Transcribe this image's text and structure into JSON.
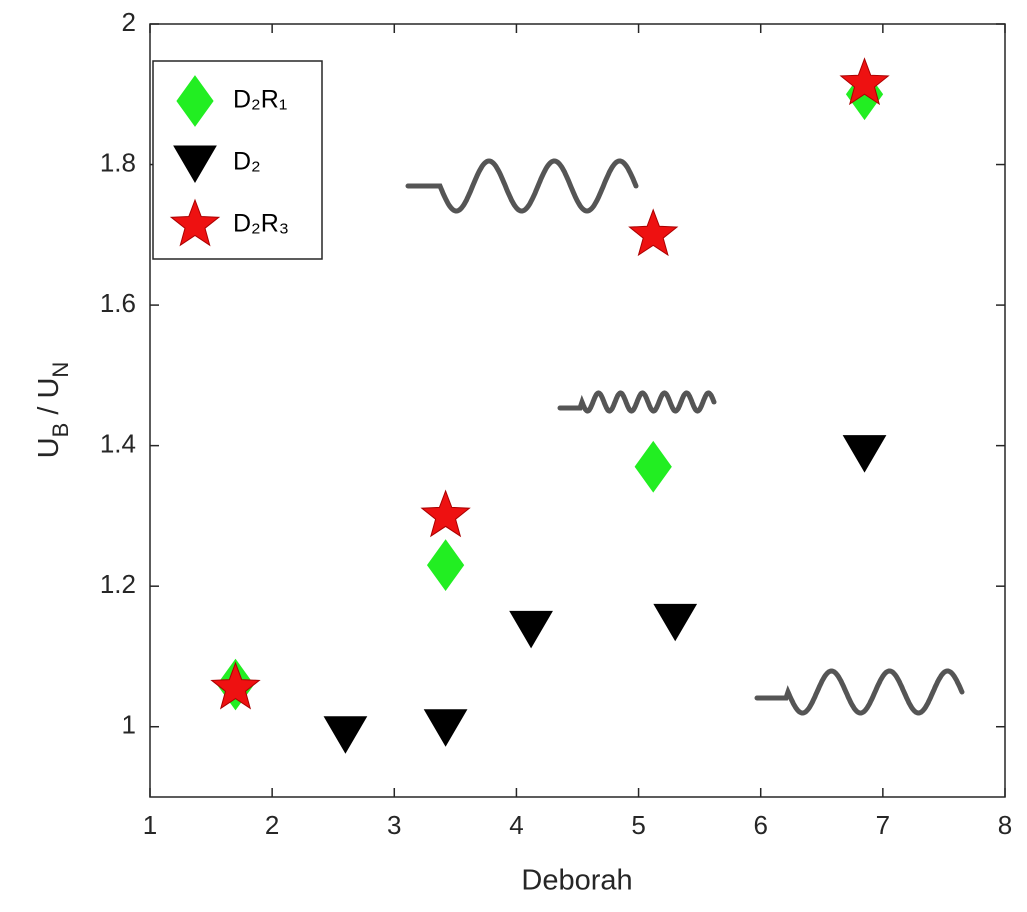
{
  "chart_data": {
    "type": "scatter",
    "xlabel": "Deborah",
    "ylabel": [
      "U",
      "B",
      " / U",
      "N"
    ],
    "xlim": [
      1,
      8
    ],
    "xticks": [
      1,
      2,
      3,
      4,
      5,
      6,
      7,
      8
    ],
    "ylim": [
      0.9,
      2
    ],
    "yticks": [
      1,
      {
        "value": 1.2,
        "label": "1.2"
      },
      {
        "value": 1.4,
        "label": "1.4"
      },
      {
        "value": 1.6,
        "label": "1.6"
      },
      {
        "value": 1.8,
        "label": "1.8"
      },
      2
    ],
    "legend": "upper left",
    "series": [
      {
        "name": "D₂R₁",
        "color": "#22ee22",
        "marker": "diamond",
        "x": [
          1.7,
          3.42,
          5.12,
          6.85
        ],
        "values": [
          1.06,
          1.23,
          1.37,
          1.9
        ]
      },
      {
        "name": "D₂",
        "color": "#000000",
        "marker": "triangle-down",
        "x": [
          2.6,
          3.42,
          4.12,
          5.3,
          6.85
        ],
        "values": [
          0.99,
          1.0,
          1.14,
          1.15,
          1.39
        ]
      },
      {
        "name": "D₂R₃",
        "color": "#ee1111",
        "marker": "star",
        "x": [
          1.7,
          3.42,
          5.12,
          6.85
        ],
        "values": [
          1.055,
          1.3,
          1.7,
          1.915
        ]
      }
    ]
  }
}
